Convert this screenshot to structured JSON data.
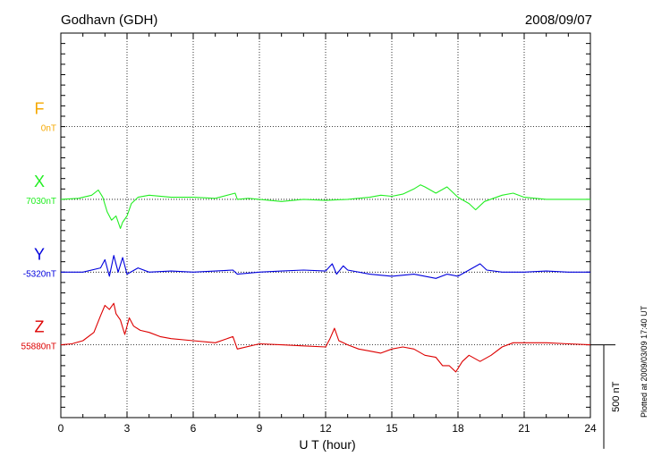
{
  "header": {
    "station": "Godhavn (GDH)",
    "date": "2008/09/07"
  },
  "footer": {
    "plotted": "Plotted at 2009/03/09 17:40 UT"
  },
  "chart_data": {
    "type": "line",
    "xlabel": "U T (hour)",
    "xlim": [
      0,
      24
    ],
    "xticks": [
      0,
      3,
      6,
      9,
      12,
      15,
      18,
      21,
      24
    ],
    "x_tick_labels": [
      "0",
      "3",
      "6",
      "9",
      "12",
      "15",
      "18",
      "21",
      "24"
    ],
    "y_units": "nT",
    "ylim_relative_to_Z_baseline": [
      -350,
      1500
    ],
    "grid": "dotted baselines at each component level and vertical lines every 3 hours",
    "scale_bar": {
      "label": "500 nT",
      "value": 500
    },
    "series": [
      {
        "name": "F",
        "baseline_label": "0nT",
        "color": "#f5a800",
        "offset": 1050,
        "x": [],
        "y": []
      },
      {
        "name": "X",
        "baseline_label": "7030nT",
        "color": "#22ee22",
        "offset": 700,
        "x": [
          0,
          0.8,
          1.4,
          1.7,
          1.9,
          2.1,
          2.3,
          2.5,
          2.7,
          2.8,
          3.0,
          3.2,
          3.5,
          4.0,
          5.0,
          6.0,
          7.0,
          7.9,
          8.0,
          8.5,
          9.0,
          10.0,
          11.0,
          12.0,
          13.0,
          14.0,
          14.5,
          15.0,
          15.5,
          16.0,
          16.3,
          16.5,
          17.0,
          17.5,
          18.0,
          18.5,
          18.8,
          19.2,
          20.0,
          20.5,
          21.0,
          22.0,
          23.0,
          24.0
        ],
        "y": [
          0,
          5,
          20,
          45,
          10,
          -60,
          -100,
          -80,
          -140,
          -110,
          -80,
          -20,
          10,
          20,
          10,
          10,
          5,
          30,
          0,
          5,
          0,
          -10,
          0,
          -5,
          0,
          10,
          20,
          15,
          25,
          50,
          70,
          60,
          30,
          60,
          10,
          -20,
          -50,
          -10,
          20,
          30,
          10,
          0,
          0,
          0
        ]
      },
      {
        "name": "Y",
        "baseline_label": "-5320nT",
        "color": "#0000dd",
        "offset": 350,
        "x": [
          0,
          1.0,
          1.8,
          2.0,
          2.2,
          2.4,
          2.6,
          2.8,
          3.0,
          3.5,
          4.0,
          5.0,
          6.0,
          7.0,
          7.8,
          8.0,
          9.0,
          10.0,
          11.0,
          12.0,
          12.3,
          12.5,
          12.8,
          13.0,
          14.0,
          15.0,
          16.0,
          17.0,
          17.5,
          18.0,
          18.5,
          19.0,
          19.3,
          20.0,
          21.0,
          22.0,
          23.0,
          24.0
        ],
        "y": [
          0,
          0,
          20,
          60,
          -20,
          80,
          0,
          70,
          -10,
          20,
          0,
          5,
          0,
          5,
          10,
          -10,
          0,
          5,
          10,
          5,
          40,
          -10,
          30,
          10,
          -10,
          -20,
          -10,
          -30,
          -10,
          -20,
          10,
          40,
          10,
          0,
          0,
          5,
          0,
          0
        ]
      },
      {
        "name": "Z",
        "baseline_label": "55880nT",
        "color": "#dd0000",
        "offset": 0,
        "x": [
          0,
          0.5,
          1.0,
          1.5,
          1.8,
          2.0,
          2.2,
          2.4,
          2.5,
          2.7,
          2.9,
          3.1,
          3.3,
          3.6,
          4.0,
          4.5,
          5.0,
          6.0,
          7.0,
          7.8,
          8.0,
          9.0,
          10.0,
          11.0,
          12.0,
          12.2,
          12.4,
          12.6,
          13.0,
          13.5,
          14.0,
          14.5,
          15.0,
          15.5,
          16.0,
          16.5,
          17.0,
          17.3,
          17.6,
          17.9,
          18.2,
          18.5,
          19.0,
          19.5,
          20.0,
          20.5,
          21.0,
          22.0,
          23.0,
          24.0
        ],
        "y": [
          0,
          5,
          20,
          60,
          140,
          190,
          170,
          200,
          150,
          120,
          50,
          130,
          90,
          70,
          60,
          40,
          30,
          20,
          10,
          40,
          -20,
          5,
          0,
          -5,
          -10,
          30,
          80,
          20,
          0,
          -20,
          -30,
          -40,
          -20,
          -10,
          -20,
          -50,
          -60,
          -100,
          -100,
          -130,
          -80,
          -50,
          -80,
          -50,
          -10,
          10,
          10,
          10,
          5,
          0
        ]
      }
    ]
  }
}
